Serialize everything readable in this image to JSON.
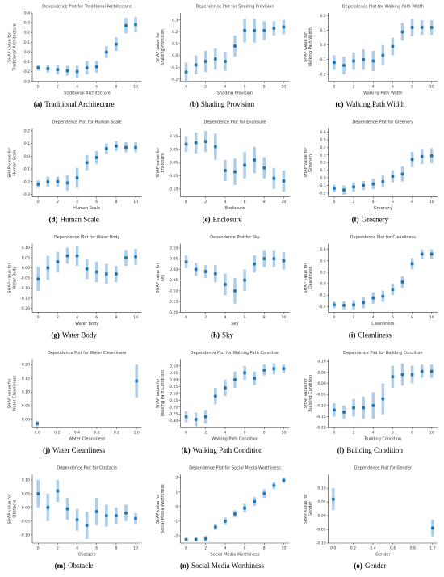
{
  "chart_data": [
    {
      "type": "dependence",
      "title": "Dependence Plot for Traditional Architecture",
      "xlabel": "Traditional Architecture",
      "ylabel": [
        "SHAP value for",
        "Traditional Architecture"
      ],
      "caption_label": "(a)",
      "caption": "Traditional Architecture",
      "color": "#1f77b4",
      "error_color": "#aecde9",
      "x": [
        0,
        1,
        2,
        3,
        4,
        5,
        6,
        7,
        8,
        9,
        10
      ],
      "values": [
        -0.16,
        -0.17,
        -0.18,
        -0.19,
        -0.2,
        -0.16,
        -0.15,
        0.0,
        0.08,
        0.27,
        0.28
      ],
      "errors": [
        0.03,
        0.04,
        0.05,
        0.05,
        0.06,
        0.07,
        0.06,
        0.06,
        0.07,
        0.08,
        0.08
      ],
      "xlim": [
        -0.6,
        10.6
      ],
      "xticks": [
        0,
        2,
        4,
        6,
        8,
        10
      ],
      "ylim": [
        -0.3,
        0.4
      ],
      "yticks": [
        -0.3,
        -0.2,
        -0.1,
        {
          "value": 0,
          "label": "0.0"
        },
        0.1,
        0.2,
        0.3,
        0.4
      ]
    },
    {
      "type": "dependence",
      "title": "Dependence Plot for Shading Provision",
      "xlabel": "Shading Provision",
      "ylabel": [
        "SHAP value for",
        "Shading Provision"
      ],
      "caption_label": "(b)",
      "caption": "Shading Provision",
      "color": "#1f77b4",
      "error_color": "#aecde9",
      "x": [
        0,
        1,
        2,
        3,
        4,
        5,
        6,
        7,
        8,
        9,
        10
      ],
      "values": [
        -0.14,
        -0.08,
        -0.05,
        -0.03,
        -0.05,
        0.08,
        0.21,
        0.21,
        0.21,
        0.23,
        0.24
      ],
      "errors": [
        0.08,
        0.08,
        0.09,
        0.09,
        0.08,
        0.09,
        0.1,
        0.1,
        0.08,
        0.06,
        0.06
      ],
      "xlim": [
        -0.6,
        10.6
      ],
      "xticks": [
        0,
        2,
        4,
        6,
        8,
        10
      ],
      "ylim": [
        -0.22,
        0.36
      ],
      "yticks": [
        -0.2,
        -0.1,
        {
          "value": 0,
          "label": "0.0"
        },
        0.1,
        0.2,
        0.3
      ]
    },
    {
      "type": "dependence",
      "title": "Dependence Plot for Walking Path Width",
      "xlabel": "Walking Path Width",
      "ylabel": [
        "SHAP value for",
        "Walking Path Width"
      ],
      "caption_label": "(c)",
      "caption": "Walking Path Width",
      "color": "#1f77b4",
      "error_color": "#aecde9",
      "x": [
        0,
        1,
        2,
        3,
        4,
        5,
        6,
        7,
        8,
        9,
        10
      ],
      "values": [
        -0.12,
        -0.14,
        -0.11,
        -0.1,
        -0.11,
        -0.07,
        -0.01,
        0.09,
        0.12,
        0.12,
        0.12
      ],
      "errors": [
        0.05,
        0.06,
        0.06,
        0.07,
        0.07,
        0.07,
        0.06,
        0.06,
        0.06,
        0.05,
        0.05
      ],
      "xlim": [
        -0.6,
        10.6
      ],
      "xticks": [
        0,
        2,
        4,
        6,
        8,
        10
      ],
      "ylim": [
        -0.25,
        0.22
      ],
      "yticks": [
        -0.2,
        -0.1,
        {
          "value": 0,
          "label": "0.0"
        },
        0.1,
        0.2
      ]
    },
    {
      "type": "dependence",
      "title": "Dependence Plot for Human Scale",
      "xlabel": "Human Scale",
      "ylabel": [
        "SHAP value for",
        "Human Scale"
      ],
      "caption_label": "(d)",
      "caption": "Human Scale",
      "color": "#1f77b4",
      "error_color": "#aecde9",
      "x": [
        0,
        1,
        2,
        3,
        4,
        5,
        6,
        7,
        8,
        9,
        10
      ],
      "values": [
        -0.22,
        -0.2,
        -0.2,
        -0.21,
        -0.17,
        -0.05,
        -0.01,
        0.06,
        0.08,
        0.07,
        0.07
      ],
      "errors": [
        0.03,
        0.04,
        0.04,
        0.06,
        0.08,
        0.06,
        0.05,
        0.04,
        0.04,
        0.04,
        0.04
      ],
      "xlim": [
        -0.6,
        10.6
      ],
      "xticks": [
        0,
        2,
        4,
        6,
        8,
        10
      ],
      "ylim": [
        -0.32,
        0.22
      ],
      "yticks": [
        -0.3,
        -0.2,
        -0.1,
        {
          "value": 0,
          "label": "0.0"
        },
        0.1,
        0.2
      ]
    },
    {
      "type": "dependence",
      "title": "Dependence Plot for Enclosure",
      "xlabel": "Enclosure",
      "ylabel": [
        "SHAP value for",
        "Enclosure"
      ],
      "caption_label": "(e)",
      "caption": "Enclosure",
      "color": "#1f77b4",
      "error_color": "#aecde9",
      "x": [
        0,
        1,
        2,
        3,
        4,
        5,
        6,
        7,
        8,
        9,
        10
      ],
      "values": [
        0.07,
        0.075,
        0.08,
        0.06,
        -0.03,
        -0.035,
        -0.01,
        0.01,
        -0.02,
        -0.06,
        -0.07
      ],
      "errors": [
        0.03,
        0.04,
        0.04,
        0.05,
        0.04,
        0.05,
        0.05,
        0.05,
        0.04,
        0.04,
        0.04
      ],
      "xlim": [
        -0.6,
        10.6
      ],
      "xticks": [
        0,
        2,
        4,
        6,
        8,
        10
      ],
      "ylim": [
        -0.13,
        0.13
      ],
      "yticks": [
        {
          "value": -0.1,
          "label": "-0.10"
        },
        -0.05,
        {
          "value": 0,
          "label": "0.00"
        },
        0.05,
        {
          "value": 0.1,
          "label": "0.10"
        }
      ]
    },
    {
      "type": "dependence",
      "title": "Dependence Plot for Greenery",
      "xlabel": "Greenery",
      "ylabel": [
        "SHAP value for",
        "Greenery"
      ],
      "caption_label": "(f)",
      "caption": "Greenery",
      "color": "#1f77b4",
      "error_color": "#aecde9",
      "x": [
        0,
        1,
        2,
        3,
        4,
        5,
        6,
        7,
        8,
        9,
        10
      ],
      "values": [
        -0.14,
        -0.16,
        -0.12,
        -0.1,
        -0.08,
        -0.05,
        0.02,
        0.05,
        0.24,
        0.28,
        0.29
      ],
      "errors": [
        0.05,
        0.06,
        0.06,
        0.06,
        0.07,
        0.08,
        0.08,
        0.1,
        0.1,
        0.1,
        0.1
      ],
      "xlim": [
        -0.6,
        10.6
      ],
      "xticks": [
        0,
        2,
        4,
        6,
        8,
        10
      ],
      "ylim": [
        -0.25,
        0.65
      ],
      "yticks": [
        -0.2,
        -0.1,
        {
          "value": 0,
          "label": "0.0"
        },
        0.1,
        0.2,
        0.3,
        0.4,
        0.5,
        0.6
      ]
    },
    {
      "type": "dependence",
      "title": "Dependence Plot for Water Body",
      "xlabel": "Water Body",
      "ylabel": [
        "SHAP value for",
        "Water Body"
      ],
      "caption_label": "(g)",
      "caption": "Water Body",
      "color": "#1f77b4",
      "error_color": "#aecde9",
      "x": [
        0,
        1,
        2,
        3,
        4,
        5,
        6,
        7,
        8,
        9,
        10
      ],
      "values": [
        -0.055,
        0.0,
        0.03,
        0.06,
        0.06,
        -0.005,
        -0.02,
        -0.03,
        -0.03,
        0.05,
        0.055
      ],
      "errors": [
        0.06,
        0.06,
        0.05,
        0.04,
        0.05,
        0.05,
        0.05,
        0.05,
        0.04,
        0.04,
        0.04
      ],
      "xlim": [
        -0.6,
        10.6
      ],
      "xticks": [
        0,
        2,
        4,
        6,
        8,
        10
      ],
      "ylim": [
        -0.22,
        0.12
      ],
      "yticks": [
        {
          "value": -0.2,
          "label": "-0.20"
        },
        -0.15,
        {
          "value": -0.1,
          "label": "-0.10"
        },
        -0.05,
        {
          "value": 0,
          "label": "0.00"
        },
        0.05,
        {
          "value": 0.1,
          "label": "0.10"
        }
      ]
    },
    {
      "type": "dependence",
      "title": "Dependence Plot for Sky",
      "xlabel": "Sky",
      "ylabel": [
        "SHAP value for",
        "Sky"
      ],
      "caption_label": "(h)",
      "caption": "Sky",
      "color": "#1f77b4",
      "error_color": "#aecde9",
      "x": [
        0,
        1,
        2,
        3,
        4,
        5,
        6,
        7,
        8,
        9,
        10
      ],
      "values": [
        0.035,
        0.0,
        -0.01,
        -0.02,
        -0.07,
        -0.1,
        -0.05,
        0.025,
        0.05,
        0.05,
        0.04
      ],
      "errors": [
        0.03,
        0.03,
        0.03,
        0.04,
        0.05,
        0.06,
        0.05,
        0.04,
        0.04,
        0.04,
        0.04
      ],
      "xlim": [
        -0.6,
        10.6
      ],
      "xticks": [
        0,
        2,
        4,
        6,
        8,
        10
      ],
      "ylim": [
        -0.2,
        0.12
      ],
      "yticks": [
        {
          "value": -0.2,
          "label": "-0.20"
        },
        -0.15,
        {
          "value": -0.1,
          "label": "-0.10"
        },
        -0.05,
        {
          "value": 0,
          "label": "0.00"
        },
        0.05,
        {
          "value": 0.1,
          "label": "0.10"
        }
      ]
    },
    {
      "type": "dependence",
      "title": "Dependence Plot for Cleanliness",
      "xlabel": "Cleanliness",
      "ylabel": [
        "SHAP value for",
        "Cleanliness"
      ],
      "caption_label": "(i)",
      "caption": "Cleanliness",
      "color": "#1f77b4",
      "error_color": "#aecde9",
      "x": [
        0,
        1,
        2,
        3,
        4,
        5,
        6,
        7,
        8,
        9,
        10
      ],
      "values": [
        -0.37,
        -0.38,
        -0.37,
        -0.33,
        -0.25,
        -0.22,
        -0.1,
        0.03,
        0.35,
        0.52,
        0.52
      ],
      "errors": [
        0.06,
        0.07,
        0.08,
        0.1,
        0.1,
        0.1,
        0.1,
        0.1,
        0.1,
        0.08,
        0.08
      ],
      "xlim": [
        -0.6,
        10.6
      ],
      "xticks": [
        0,
        2,
        4,
        6,
        8,
        10
      ],
      "ylim": [
        -0.5,
        0.7
      ],
      "yticks": [
        -0.4,
        -0.2,
        {
          "value": 0,
          "label": "0.0"
        },
        0.2,
        0.4,
        0.6
      ]
    },
    {
      "type": "dependence",
      "title": "Dependence Plot for Water Cleanliness",
      "xlabel": "Water Cleanliness",
      "ylabel": [
        "SHAP value for",
        "Water Cleanliness"
      ],
      "caption_label": "(j)",
      "caption": "Water Cleanliness",
      "color": "#1f77b4",
      "error_color": "#aecde9",
      "x": [
        0,
        1
      ],
      "values": [
        -0.015,
        0.14
      ],
      "errors": [
        0.01,
        0.06
      ],
      "xlim": [
        -0.05,
        1.05
      ],
      "xticks": [
        {
          "value": 0,
          "label": "0.0"
        },
        0.2,
        0.4,
        0.6,
        0.8,
        {
          "value": 1,
          "label": "1.0"
        }
      ],
      "ylim": [
        -0.03,
        0.22
      ],
      "yticks": [
        {
          "value": 0,
          "label": "0.00"
        },
        0.05,
        {
          "value": 0.1,
          "label": "0.10"
        },
        0.15,
        {
          "value": 0.2,
          "label": "0.20"
        }
      ]
    },
    {
      "type": "dependence",
      "title": "Dependence Plot for Walking Path Condition",
      "xlabel": "Walking Path Condition",
      "ylabel": [
        "SHAP value for",
        "Walking Path Condition"
      ],
      "caption_label": "(k)",
      "caption": "Walking Path Condition",
      "color": "#1f77b4",
      "error_color": "#aecde9",
      "x": [
        0,
        1,
        2,
        3,
        4,
        5,
        6,
        7,
        8,
        9,
        10
      ],
      "values": [
        -0.27,
        -0.29,
        -0.27,
        -0.12,
        -0.06,
        0.0,
        0.05,
        0.01,
        0.07,
        0.08,
        0.08
      ],
      "errors": [
        0.04,
        0.05,
        0.05,
        0.06,
        0.06,
        0.06,
        0.05,
        0.05,
        0.04,
        0.04,
        0.03
      ],
      "xlim": [
        -0.6,
        10.6
      ],
      "xticks": [
        0,
        2,
        4,
        6,
        8,
        10
      ],
      "ylim": [
        -0.35,
        0.15
      ],
      "yticks": [
        {
          "value": -0.3,
          "label": "-0.30"
        },
        -0.25,
        {
          "value": -0.2,
          "label": "-0.20"
        },
        -0.15,
        {
          "value": -0.1,
          "label": "-0.10"
        },
        -0.05,
        {
          "value": 0,
          "label": "0.00"
        },
        0.05,
        {
          "value": 0.1,
          "label": "0.10"
        }
      ]
    },
    {
      "type": "dependence",
      "title": "Dependence Plot for Building Condition",
      "xlabel": "Building Condition",
      "ylabel": [
        "SHAP value for",
        "Building Condition"
      ],
      "caption_label": "(l)",
      "caption": "Building Condition",
      "color": "#1f77b4",
      "error_color": "#aecde9",
      "x": [
        0,
        1,
        2,
        3,
        4,
        5,
        6,
        7,
        8,
        9,
        10
      ],
      "values": [
        -0.12,
        -0.13,
        -0.11,
        -0.11,
        -0.1,
        -0.07,
        0.03,
        0.04,
        0.04,
        0.055,
        0.055
      ],
      "errors": [
        0.03,
        0.03,
        0.04,
        0.05,
        0.06,
        0.07,
        0.05,
        0.05,
        0.04,
        0.03,
        0.03
      ],
      "xlim": [
        -0.6,
        10.6
      ],
      "xticks": [
        0,
        2,
        4,
        6,
        8,
        10
      ],
      "ylim": [
        -0.2,
        0.11
      ],
      "yticks": [
        {
          "value": -0.2,
          "label": "-0.20"
        },
        -0.15,
        {
          "value": -0.1,
          "label": "-0.10"
        },
        -0.05,
        {
          "value": 0,
          "label": "0.00"
        },
        0.05,
        {
          "value": 0.1,
          "label": "0.10"
        }
      ]
    },
    {
      "type": "dependence",
      "title": "Dependence Plot for Obstacle",
      "xlabel": "Obstacle",
      "ylabel": [
        "SHAP value for",
        "Obstacle"
      ],
      "caption_label": "(m)",
      "caption": "Obstacle",
      "color": "#1f77b4",
      "error_color": "#aecde9",
      "x": [
        0,
        1,
        2,
        3,
        4,
        5,
        6,
        7,
        8,
        9,
        10
      ],
      "values": [
        0.05,
        0.0,
        0.06,
        -0.005,
        -0.045,
        -0.065,
        -0.015,
        -0.03,
        -0.03,
        -0.02,
        -0.04
      ],
      "errors": [
        0.05,
        0.05,
        0.04,
        0.04,
        0.04,
        0.05,
        0.05,
        0.04,
        0.03,
        0.03,
        0.02
      ],
      "xlim": [
        -0.6,
        10.6
      ],
      "xticks": [
        0,
        2,
        4,
        6,
        8,
        10
      ],
      "ylim": [
        -0.13,
        0.12
      ],
      "yticks": [
        {
          "value": -0.1,
          "label": "-0.10"
        },
        -0.05,
        {
          "value": 0,
          "label": "0.00"
        },
        0.05,
        {
          "value": 0.1,
          "label": "0.10"
        }
      ]
    },
    {
      "type": "dependence",
      "title": "Dependence Plot for Social Media Worthiness",
      "xlabel": "Social Media Worthiness",
      "ylabel": [
        "SHAP value for",
        "Social Media Worthiness"
      ],
      "caption_label": "(n)",
      "caption": "Social Media Worthiness",
      "color": "#1f77b4",
      "error_color": "#aecde9",
      "x": [
        0,
        1,
        2,
        3,
        4,
        5,
        6,
        7,
        8,
        9,
        10
      ],
      "values": [
        -2.25,
        -2.25,
        -2.2,
        -1.4,
        -1.0,
        -0.5,
        -0.1,
        0.35,
        0.9,
        1.45,
        1.8
      ],
      "errors": [
        0.1,
        0.15,
        0.2,
        0.2,
        0.25,
        0.25,
        0.3,
        0.3,
        0.3,
        0.25,
        0.2
      ],
      "xlim": [
        -0.6,
        10.6
      ],
      "xticks": [
        0,
        2,
        4,
        6,
        8,
        10
      ],
      "ylim": [
        -2.5,
        2.2
      ],
      "yticks": [
        -2,
        -1,
        0,
        1,
        2
      ]
    },
    {
      "type": "dependence",
      "title": "Dependence Plot for Gender",
      "xlabel": "Gender",
      "ylabel": [
        "SHAP value for",
        "Gender"
      ],
      "caption_label": "(o)",
      "caption": "Gender",
      "color": "#1f77b4",
      "error_color": "#aecde9",
      "x": [
        0,
        1
      ],
      "values": [
        0.06,
        -0.045
      ],
      "errors": [
        0.04,
        0.03
      ],
      "xlim": [
        -0.05,
        1.05
      ],
      "xticks": [
        {
          "value": 0,
          "label": "0.0"
        },
        0.2,
        0.4,
        0.6,
        0.8,
        {
          "value": 1,
          "label": "1.0"
        }
      ],
      "ylim": [
        -0.1,
        0.15
      ],
      "yticks": [
        {
          "value": -0.1,
          "label": "-0.10"
        },
        -0.05,
        {
          "value": 0,
          "label": "0.00"
        },
        0.05,
        {
          "value": 0.1,
          "label": "0.10"
        }
      ]
    }
  ]
}
